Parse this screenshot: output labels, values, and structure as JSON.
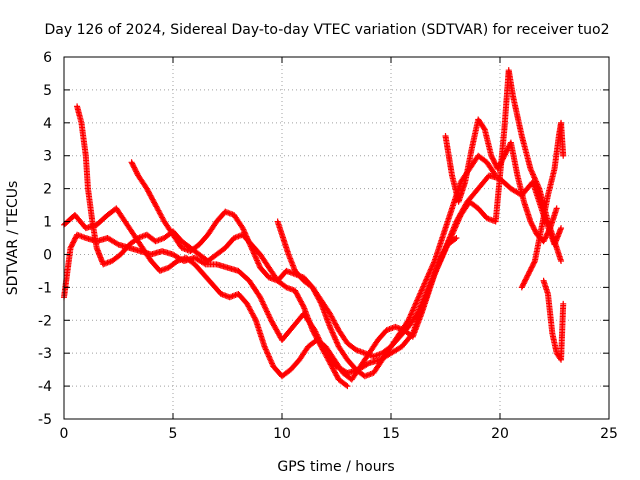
{
  "chart_data": {
    "type": "scatter",
    "title": "Day 126 of 2024, Sidereal Day-to-day VTEC variation (SDTVAR) for receiver tuo2",
    "xlabel": "GPS time / hours",
    "ylabel": "SDTVAR / TECUs",
    "xlim": [
      0,
      25
    ],
    "ylim": [
      -5,
      6
    ],
    "xticks": [
      0,
      5,
      10,
      15,
      20,
      25
    ],
    "yticks": [
      -5,
      -4,
      -3,
      -2,
      -1,
      0,
      1,
      2,
      3,
      4,
      5,
      6
    ],
    "grid": true,
    "marker": "+",
    "color": "#ff0000",
    "series": [
      {
        "name": "trace-1",
        "x": [
          0.0,
          0.3,
          0.6,
          1.0,
          1.5,
          2.0,
          2.5,
          3.0,
          3.5,
          4.0,
          4.5,
          5.0,
          5.5,
          6.0,
          6.5,
          7.0,
          7.5,
          8.0,
          8.5,
          9.0,
          9.5,
          10.0,
          10.5,
          11.0,
          11.5,
          12.0,
          12.5,
          13.0,
          13.5,
          14.0,
          14.5,
          15.0,
          15.5,
          16.0,
          16.5,
          17.0,
          17.5,
          18.0,
          18.5,
          19.0,
          19.5,
          20.0,
          20.5,
          21.0,
          21.5,
          22.0,
          22.5,
          22.8
        ],
        "y": [
          -1.3,
          0.2,
          0.6,
          0.5,
          0.4,
          0.5,
          0.3,
          0.2,
          0.1,
          0.0,
          0.1,
          0.0,
          -0.2,
          -0.1,
          -0.3,
          -0.3,
          -0.4,
          -0.5,
          -0.8,
          -1.3,
          -2.0,
          -2.6,
          -2.2,
          -1.8,
          -2.3,
          -3.0,
          -3.4,
          -3.6,
          -3.5,
          -3.3,
          -3.2,
          -3.0,
          -2.8,
          -2.4,
          -1.5,
          -0.6,
          0.2,
          1.0,
          1.6,
          2.0,
          2.4,
          2.3,
          2.0,
          1.8,
          2.2,
          1.2,
          0.3,
          0.8
        ]
      },
      {
        "name": "trace-2",
        "x": [
          0.6,
          0.8,
          1.0,
          1.1,
          1.3,
          1.5,
          1.8,
          2.2,
          2.6,
          3.0,
          3.4,
          3.8,
          4.2,
          4.6,
          5.0,
          5.4,
          5.8,
          6.2,
          6.6,
          7.0,
          7.4,
          7.8,
          8.2,
          8.6,
          9.0,
          9.4,
          9.8,
          10.2,
          10.6,
          11.0,
          11.4,
          11.8,
          12.2,
          12.6,
          13.0
        ],
        "y": [
          4.5,
          4.0,
          3.0,
          2.0,
          1.0,
          0.2,
          -0.3,
          -0.2,
          0.0,
          0.3,
          0.5,
          0.6,
          0.4,
          0.5,
          0.7,
          0.4,
          0.2,
          0.0,
          -0.2,
          0.0,
          0.2,
          0.5,
          0.6,
          0.3,
          0.0,
          -0.4,
          -0.8,
          -1.0,
          -1.1,
          -1.6,
          -2.3,
          -2.8,
          -3.3,
          -3.8,
          -4.0
        ]
      },
      {
        "name": "trace-3",
        "x": [
          3.1,
          3.4,
          3.8,
          4.2,
          4.6,
          5.0,
          5.4,
          5.8,
          6.2,
          6.6,
          7.0,
          7.4,
          7.8,
          8.2,
          8.6,
          9.0,
          9.4,
          9.8,
          10.2,
          10.6,
          11.0,
          11.4,
          11.8,
          12.2,
          12.6,
          13.0,
          13.4,
          13.8,
          14.2,
          14.6,
          15.0,
          15.4,
          15.8,
          16.2,
          16.6,
          17.0,
          17.4,
          17.8,
          18.2,
          18.6,
          19.0,
          19.4,
          19.8
        ],
        "y": [
          2.8,
          2.4,
          2.0,
          1.5,
          1.0,
          0.6,
          0.2,
          0.1,
          0.3,
          0.6,
          1.0,
          1.3,
          1.2,
          0.8,
          0.2,
          -0.4,
          -0.7,
          -0.8,
          -0.5,
          -0.6,
          -0.7,
          -1.0,
          -1.5,
          -2.2,
          -2.8,
          -3.2,
          -3.5,
          -3.7,
          -3.6,
          -3.2,
          -2.8,
          -2.4,
          -2.0,
          -1.4,
          -0.8,
          -0.2,
          0.6,
          1.4,
          2.2,
          2.6,
          3.0,
          2.8,
          2.4
        ]
      },
      {
        "name": "trace-4",
        "x": [
          0.0,
          0.5,
          1.0,
          1.5,
          2.0,
          2.4,
          2.8,
          3.2,
          3.6,
          4.0,
          4.4,
          4.8,
          5.2,
          5.6,
          6.0,
          6.4,
          6.8,
          7.2,
          7.6,
          8.0,
          8.4,
          8.8,
          9.2,
          9.6,
          10.0,
          10.4,
          10.8,
          11.2,
          11.6,
          12.0,
          12.4,
          12.8,
          13.2,
          13.6,
          14.0,
          14.4,
          14.8,
          15.2,
          15.6,
          16.0,
          16.4,
          16.8,
          17.2,
          17.6,
          18.0
        ],
        "y": [
          0.9,
          1.2,
          0.8,
          0.9,
          1.2,
          1.4,
          1.0,
          0.6,
          0.2,
          -0.2,
          -0.5,
          -0.4,
          -0.2,
          -0.1,
          -0.3,
          -0.6,
          -0.9,
          -1.2,
          -1.3,
          -1.2,
          -1.5,
          -2.0,
          -2.8,
          -3.4,
          -3.7,
          -3.5,
          -3.2,
          -2.8,
          -2.6,
          -2.8,
          -3.2,
          -3.6,
          -3.8,
          -3.4,
          -3.0,
          -2.6,
          -2.3,
          -2.2,
          -2.3,
          -2.5,
          -1.8,
          -1.0,
          -0.2,
          0.3,
          0.5
        ]
      },
      {
        "name": "trace-5",
        "x": [
          9.8,
          10.0,
          10.3,
          10.6,
          11.0,
          11.4,
          11.8,
          12.2,
          12.6,
          13.0,
          13.4,
          13.8,
          14.2,
          14.6,
          15.0,
          15.4,
          15.8,
          16.2,
          16.6,
          17.0,
          17.4,
          17.8,
          18.2,
          18.6,
          19.0,
          19.4,
          19.8,
          20.2,
          20.4,
          20.6,
          21.0,
          21.4,
          21.8,
          22.2,
          22.6,
          22.8
        ],
        "y": [
          1.0,
          0.6,
          0.0,
          -0.5,
          -0.8,
          -1.0,
          -1.4,
          -1.8,
          -2.3,
          -2.7,
          -2.9,
          -3.0,
          -3.1,
          -3.0,
          -2.8,
          -2.5,
          -2.2,
          -1.8,
          -1.2,
          -0.6,
          0.0,
          0.6,
          1.2,
          1.6,
          1.4,
          1.1,
          1.0,
          3.8,
          5.6,
          4.8,
          3.6,
          2.6,
          2.0,
          1.0,
          0.2,
          -0.2
        ]
      },
      {
        "name": "trace-6",
        "x": [
          21.0,
          21.3,
          21.6,
          21.9,
          22.2,
          22.5,
          22.7,
          22.8,
          22.9
        ],
        "y": [
          -1.0,
          -0.6,
          -0.2,
          0.8,
          1.8,
          2.6,
          3.6,
          4.0,
          3.0
        ]
      },
      {
        "name": "trace-7",
        "x": [
          22.0,
          22.2,
          22.4,
          22.6,
          22.8,
          22.9
        ],
        "y": [
          -0.8,
          -1.2,
          -2.4,
          -3.0,
          -3.2,
          -1.5
        ]
      },
      {
        "name": "trace-8",
        "x": [
          17.5,
          17.8,
          18.1,
          18.4,
          18.7,
          19.0,
          19.3,
          19.6,
          19.9,
          20.2,
          20.5,
          20.8,
          21.1,
          21.4,
          21.7,
          22.0,
          22.3,
          22.6
        ],
        "y": [
          3.6,
          2.4,
          1.6,
          2.2,
          3.2,
          4.1,
          3.8,
          3.0,
          2.6,
          3.0,
          3.4,
          2.4,
          1.6,
          1.0,
          0.6,
          0.4,
          0.8,
          1.4
        ]
      }
    ]
  }
}
